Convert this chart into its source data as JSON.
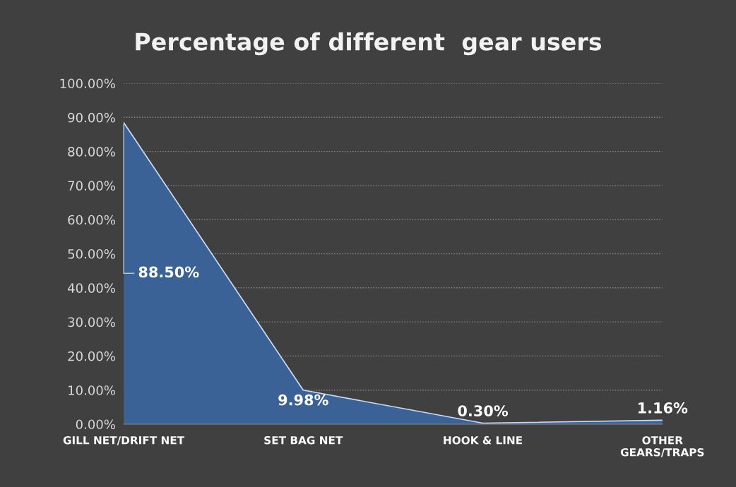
{
  "chart_data": {
    "type": "area",
    "title": "Percentage of different  gear users",
    "categories": [
      "GILL NET/DRIFT NET",
      "SET BAG NET",
      "HOOK & LINE",
      "OTHER\nGEARS/TRAPS"
    ],
    "series": [
      {
        "color": "#3b6296",
        "values": [
          88.5,
          9.98,
          0.3,
          1.16
        ]
      }
    ],
    "value_labels": [
      "88.50%",
      "9.98%",
      "0.30%",
      "1.16%"
    ],
    "ylim": [
      0,
      100
    ],
    "yticks": [
      {
        "value": 0,
        "label": "0.00%"
      },
      {
        "value": 10,
        "label": "10.00%"
      },
      {
        "value": 20,
        "label": "20.00%"
      },
      {
        "value": 30,
        "label": "30.00%"
      },
      {
        "value": 40,
        "label": "40.00%"
      },
      {
        "value": 50,
        "label": "50.00%"
      },
      {
        "value": 60,
        "label": "60.00%"
      },
      {
        "value": 70,
        "label": "70.00%"
      },
      {
        "value": 80,
        "label": "80.00%"
      },
      {
        "value": 90,
        "label": "90.00%"
      },
      {
        "value": 100,
        "label": "100.00%"
      }
    ],
    "grid": "y"
  }
}
